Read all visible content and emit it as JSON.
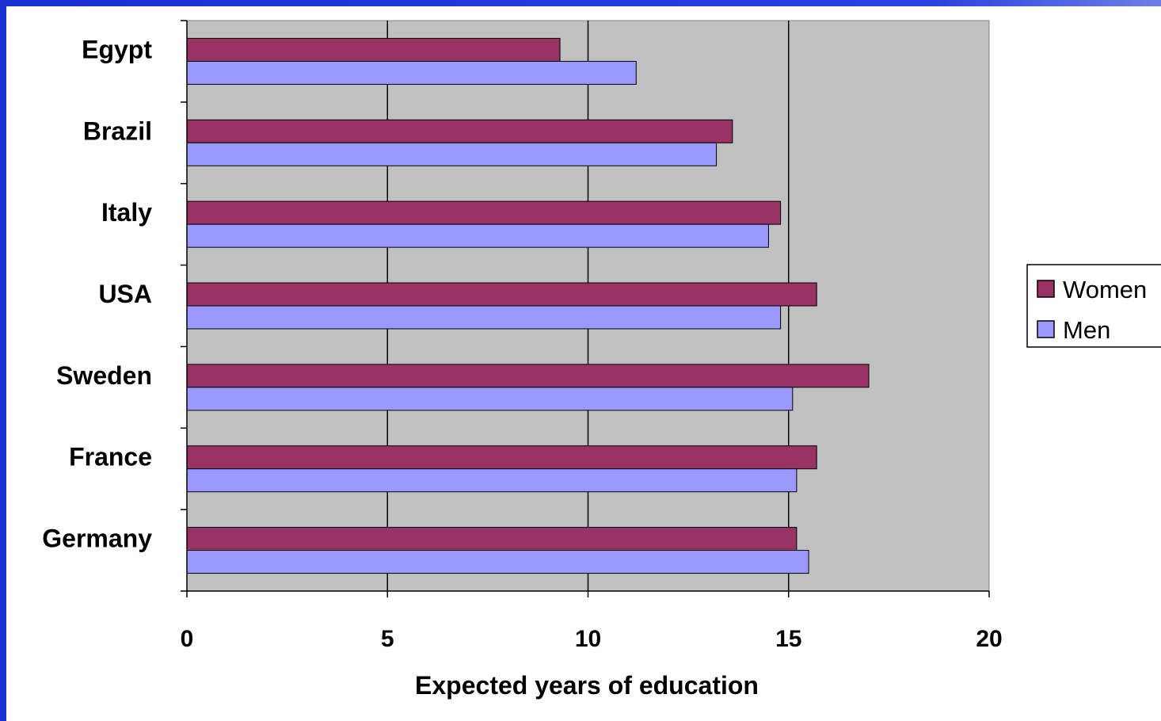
{
  "chart_data": {
    "type": "bar",
    "orientation": "horizontal",
    "categories": [
      "Egypt",
      "Brazil",
      "Italy",
      "USA",
      "Sweden",
      "France",
      "Germany"
    ],
    "series": [
      {
        "name": "Women",
        "color": "#993366",
        "values": [
          9.3,
          13.6,
          14.8,
          15.7,
          17.0,
          15.7,
          15.2
        ]
      },
      {
        "name": "Men",
        "color": "#9999ff",
        "values": [
          11.2,
          13.2,
          14.5,
          14.8,
          15.1,
          15.2,
          15.5
        ]
      }
    ],
    "xlabel": "Expected years of education",
    "ylabel": "",
    "xlim": [
      0,
      20
    ],
    "xticks": [
      "0",
      "5",
      "10",
      "15",
      "20"
    ],
    "plot_background": "#c0c0c0",
    "grid": true,
    "legend": "right"
  }
}
